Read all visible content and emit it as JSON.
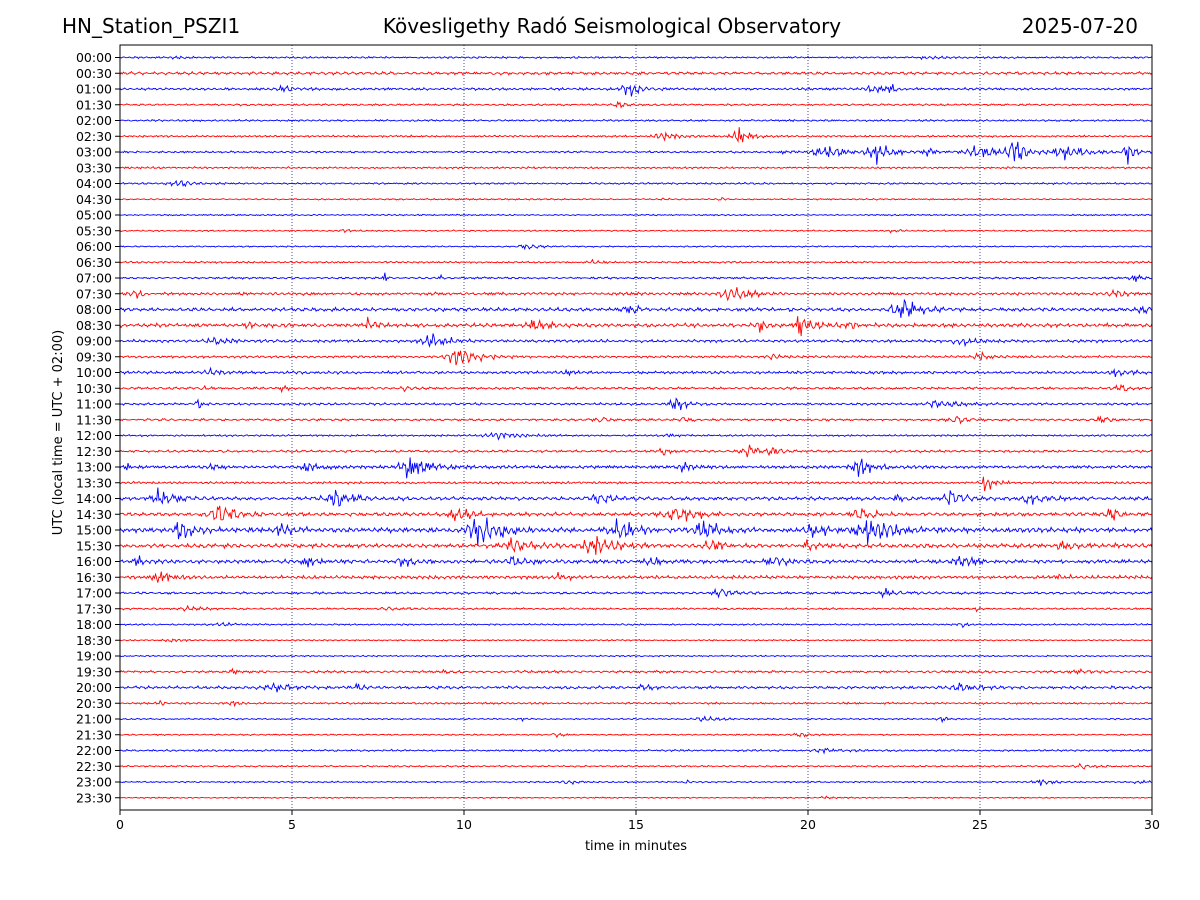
{
  "header": {
    "station": "HN_Station_PSZI1",
    "observatory": "Kövesligethy Radó Seismological Observatory",
    "date": "2025-07-20"
  },
  "colors": {
    "odd_trace": "#0000ff",
    "even_trace": "#ff0000",
    "grid": "#1a1a80",
    "axis": "#000000"
  },
  "chart_data": {
    "type": "line",
    "title": "Kövesligethy Radó Seismological Observatory",
    "xlabel": "time in minutes",
    "ylabel": "UTC (local time = UTC + 02:00)",
    "xlim": [
      0,
      30
    ],
    "x_ticks": [
      "0",
      "5",
      "10",
      "15",
      "20",
      "25",
      "30"
    ],
    "x_tick_values": [
      0,
      5,
      10,
      15,
      20,
      25,
      30
    ],
    "grid": "vertical dotted at each x tick",
    "color_cycle": [
      "blue",
      "red"
    ],
    "rows": [
      {
        "label": "00:00",
        "base": 0.8,
        "events": [
          {
            "t": 1.5,
            "amp": 1.5,
            "width": 0.4
          },
          {
            "t": 23.5,
            "amp": 1.5,
            "width": 0.5
          }
        ]
      },
      {
        "label": "00:30",
        "base": 1.2,
        "events": []
      },
      {
        "label": "01:00",
        "base": 1.0,
        "events": [
          {
            "t": 4.8,
            "amp": 2.5,
            "width": 0.6
          },
          {
            "t": 14.8,
            "amp": 6.5,
            "width": 0.5
          },
          {
            "t": 21.8,
            "amp": 7,
            "width": 0.3
          },
          {
            "t": 22.4,
            "amp": 5,
            "width": 0.2
          }
        ]
      },
      {
        "label": "01:30",
        "base": 0.8,
        "events": [
          {
            "t": 14.5,
            "amp": 2,
            "width": 0.4
          }
        ]
      },
      {
        "label": "02:00",
        "base": 0.8,
        "events": []
      },
      {
        "label": "02:30",
        "base": 0.8,
        "events": [
          {
            "t": 15.8,
            "amp": 4,
            "width": 0.6
          },
          {
            "t": 18.0,
            "amp": 6.5,
            "width": 0.5
          }
        ]
      },
      {
        "label": "03:00",
        "base": 0.8,
        "events": [
          {
            "t": 19.3,
            "amp": 0.8,
            "width": 0.5
          },
          {
            "t": 20.5,
            "amp": 5,
            "width": 1.0
          },
          {
            "t": 22.0,
            "amp": 9,
            "width": 0.6
          },
          {
            "t": 23.5,
            "amp": 4,
            "width": 0.4
          },
          {
            "t": 25.0,
            "amp": 6,
            "width": 0.8
          },
          {
            "t": 26.0,
            "amp": 13,
            "width": 0.5
          },
          {
            "t": 27.5,
            "amp": 6,
            "width": 0.8
          },
          {
            "t": 29.3,
            "amp": 11,
            "width": 0.3
          }
        ]
      },
      {
        "label": "03:30",
        "base": 0.8,
        "events": []
      },
      {
        "label": "04:00",
        "base": 0.8,
        "events": [
          {
            "t": 1.7,
            "amp": 3.5,
            "width": 0.6
          }
        ]
      },
      {
        "label": "04:30",
        "base": 0.6,
        "events": [
          {
            "t": 15.8,
            "amp": 1.5,
            "width": 0.3
          },
          {
            "t": 17.5,
            "amp": 1.5,
            "width": 0.3
          }
        ]
      },
      {
        "label": "05:00",
        "base": 0.6,
        "events": []
      },
      {
        "label": "05:30",
        "base": 0.6,
        "events": [
          {
            "t": 6.5,
            "amp": 1.5,
            "width": 0.3
          },
          {
            "t": 22.5,
            "amp": 1.5,
            "width": 0.3
          }
        ]
      },
      {
        "label": "06:00",
        "base": 0.6,
        "events": [
          {
            "t": 11.8,
            "amp": 2.5,
            "width": 0.5
          }
        ]
      },
      {
        "label": "06:30",
        "base": 0.8,
        "events": [
          {
            "t": 13.8,
            "amp": 1.5,
            "width": 0.4
          }
        ]
      },
      {
        "label": "07:00",
        "base": 0.8,
        "events": [
          {
            "t": 7.7,
            "amp": 6,
            "width": 0.1
          },
          {
            "t": 9.3,
            "amp": 4,
            "width": 0.1
          },
          {
            "t": 29.5,
            "amp": 3,
            "width": 0.4
          }
        ]
      },
      {
        "label": "07:30",
        "base": 1.2,
        "events": [
          {
            "t": 17.7,
            "amp": 9,
            "width": 0.6
          },
          {
            "t": 28.9,
            "amp": 5,
            "width": 0.4
          },
          {
            "t": 0.5,
            "amp": 3,
            "width": 0.4
          }
        ]
      },
      {
        "label": "08:00",
        "base": 1.5,
        "events": [
          {
            "t": 14.8,
            "amp": 3,
            "width": 0.5
          },
          {
            "t": 22.8,
            "amp": 8,
            "width": 0.8
          },
          {
            "t": 29.7,
            "amp": 4,
            "width": 0.3
          }
        ]
      },
      {
        "label": "08:30",
        "base": 1.6,
        "events": [
          {
            "t": 3.7,
            "amp": 3.5,
            "width": 0.3
          },
          {
            "t": 7.2,
            "amp": 5,
            "width": 0.3
          },
          {
            "t": 12.0,
            "amp": 4,
            "width": 0.6
          },
          {
            "t": 18.6,
            "amp": 5,
            "width": 0.3
          },
          {
            "t": 19.8,
            "amp": 8,
            "width": 0.5
          },
          {
            "t": 21.2,
            "amp": 3,
            "width": 0.4
          }
        ]
      },
      {
        "label": "09:00",
        "base": 1.2,
        "events": [
          {
            "t": 2.8,
            "amp": 3,
            "width": 0.6
          },
          {
            "t": 9.1,
            "amp": 5,
            "width": 0.8
          },
          {
            "t": 24.5,
            "amp": 4,
            "width": 0.6
          }
        ]
      },
      {
        "label": "09:30",
        "base": 1.0,
        "events": [
          {
            "t": 9.9,
            "amp": 8,
            "width": 0.8
          },
          {
            "t": 19.0,
            "amp": 2.5,
            "width": 0.4
          },
          {
            "t": 25.0,
            "amp": 3,
            "width": 0.4
          }
        ]
      },
      {
        "label": "10:00",
        "base": 1.2,
        "events": [
          {
            "t": 2.6,
            "amp": 2.5,
            "width": 0.4
          },
          {
            "t": 13.0,
            "amp": 2,
            "width": 0.4
          },
          {
            "t": 29.0,
            "amp": 3,
            "width": 0.6
          }
        ]
      },
      {
        "label": "10:30",
        "base": 1.0,
        "events": [
          {
            "t": 2.5,
            "amp": 1.5,
            "width": 0.3
          },
          {
            "t": 4.7,
            "amp": 2,
            "width": 0.3
          },
          {
            "t": 8.3,
            "amp": 1.8,
            "width": 0.3
          },
          {
            "t": 29.1,
            "amp": 3,
            "width": 0.5
          }
        ]
      },
      {
        "label": "11:00",
        "base": 1.0,
        "events": [
          {
            "t": 2.3,
            "amp": 4,
            "width": 0.2
          },
          {
            "t": 16.2,
            "amp": 5,
            "width": 0.5
          },
          {
            "t": 23.8,
            "amp": 3,
            "width": 0.8
          }
        ]
      },
      {
        "label": "11:30",
        "base": 0.9,
        "events": [
          {
            "t": 14.0,
            "amp": 2,
            "width": 0.5
          },
          {
            "t": 16.4,
            "amp": 2,
            "width": 0.4
          },
          {
            "t": 24.3,
            "amp": 3,
            "width": 0.5
          },
          {
            "t": 28.5,
            "amp": 2,
            "width": 0.6
          }
        ]
      },
      {
        "label": "12:00",
        "base": 0.8,
        "events": [
          {
            "t": 11.0,
            "amp": 3,
            "width": 0.8
          },
          {
            "t": 16.0,
            "amp": 1.5,
            "width": 0.4
          }
        ]
      },
      {
        "label": "12:30",
        "base": 1.0,
        "events": [
          {
            "t": 15.8,
            "amp": 3,
            "width": 0.4
          },
          {
            "t": 18.3,
            "amp": 5,
            "width": 0.5
          },
          {
            "t": 19.0,
            "amp": 5,
            "width": 0.3
          }
        ]
      },
      {
        "label": "13:00",
        "base": 1.2,
        "events": [
          {
            "t": 0.2,
            "amp": 3,
            "width": 0.1
          },
          {
            "t": 2.7,
            "amp": 2,
            "width": 0.3
          },
          {
            "t": 5.5,
            "amp": 4,
            "width": 0.5
          },
          {
            "t": 8.5,
            "amp": 9,
            "width": 0.8
          },
          {
            "t": 16.4,
            "amp": 3,
            "width": 0.5
          },
          {
            "t": 21.5,
            "amp": 7,
            "width": 0.6
          }
        ]
      },
      {
        "label": "13:30",
        "base": 1.0,
        "events": [
          {
            "t": 25.2,
            "amp": 9,
            "width": 0.3
          }
        ]
      },
      {
        "label": "14:00",
        "base": 1.5,
        "events": [
          {
            "t": 1.2,
            "amp": 8,
            "width": 0.6
          },
          {
            "t": 6.3,
            "amp": 8,
            "width": 0.7
          },
          {
            "t": 14.0,
            "amp": 4,
            "width": 0.7
          },
          {
            "t": 22.6,
            "amp": 3,
            "width": 0.3
          },
          {
            "t": 24.2,
            "amp": 7,
            "width": 0.5
          },
          {
            "t": 26.5,
            "amp": 4,
            "width": 0.6
          }
        ]
      },
      {
        "label": "14:30",
        "base": 1.5,
        "events": [
          {
            "t": 2.9,
            "amp": 8,
            "width": 0.7
          },
          {
            "t": 9.8,
            "amp": 7,
            "width": 0.5
          },
          {
            "t": 16.2,
            "amp": 7,
            "width": 0.8
          },
          {
            "t": 21.5,
            "amp": 5,
            "width": 0.6
          },
          {
            "t": 28.8,
            "amp": 6,
            "width": 0.3
          }
        ]
      },
      {
        "label": "15:00",
        "base": 2.0,
        "events": [
          {
            "t": 1.8,
            "amp": 8,
            "width": 0.5
          },
          {
            "t": 4.7,
            "amp": 4,
            "width": 0.5
          },
          {
            "t": 10.5,
            "amp": 13,
            "width": 0.9
          },
          {
            "t": 14.5,
            "amp": 8,
            "width": 0.7
          },
          {
            "t": 17.0,
            "amp": 9,
            "width": 0.6
          },
          {
            "t": 20.2,
            "amp": 5,
            "width": 0.6
          },
          {
            "t": 21.8,
            "amp": 12,
            "width": 0.9
          }
        ]
      },
      {
        "label": "15:30",
        "base": 1.8,
        "events": [
          {
            "t": 11.5,
            "amp": 5,
            "width": 0.8
          },
          {
            "t": 13.8,
            "amp": 9,
            "width": 0.7
          },
          {
            "t": 17.2,
            "amp": 6,
            "width": 0.4
          },
          {
            "t": 20.0,
            "amp": 3,
            "width": 0.3
          },
          {
            "t": 27.5,
            "amp": 3,
            "width": 0.8
          }
        ]
      },
      {
        "label": "16:00",
        "base": 1.6,
        "events": [
          {
            "t": 0.5,
            "amp": 4,
            "width": 0.4
          },
          {
            "t": 5.4,
            "amp": 5,
            "width": 0.4
          },
          {
            "t": 8.2,
            "amp": 4,
            "width": 0.4
          },
          {
            "t": 11.5,
            "amp": 5,
            "width": 0.5
          },
          {
            "t": 15.5,
            "amp": 3,
            "width": 0.5
          },
          {
            "t": 19.0,
            "amp": 4,
            "width": 0.5
          },
          {
            "t": 24.5,
            "amp": 3,
            "width": 0.6
          }
        ]
      },
      {
        "label": "16:30",
        "base": 1.4,
        "events": [
          {
            "t": 1.2,
            "amp": 6,
            "width": 0.5
          },
          {
            "t": 12.8,
            "amp": 4,
            "width": 0.3
          },
          {
            "t": 27.3,
            "amp": 2.5,
            "width": 0.3
          }
        ]
      },
      {
        "label": "17:00",
        "base": 1.0,
        "events": [
          {
            "t": 17.5,
            "amp": 3,
            "width": 0.6
          },
          {
            "t": 22.3,
            "amp": 3,
            "width": 0.6
          }
        ]
      },
      {
        "label": "17:30",
        "base": 0.8,
        "events": [
          {
            "t": 2.0,
            "amp": 2,
            "width": 0.5
          },
          {
            "t": 7.8,
            "amp": 2,
            "width": 0.5
          },
          {
            "t": 24.9,
            "amp": 3,
            "width": 0.1
          }
        ]
      },
      {
        "label": "18:00",
        "base": 0.7,
        "events": [
          {
            "t": 3.0,
            "amp": 1.2,
            "width": 0.6
          },
          {
            "t": 24.5,
            "amp": 2,
            "width": 0.4
          }
        ]
      },
      {
        "label": "18:30",
        "base": 0.6,
        "events": [
          {
            "t": 1.5,
            "amp": 1.2,
            "width": 0.5
          }
        ]
      },
      {
        "label": "19:00",
        "base": 0.6,
        "events": []
      },
      {
        "label": "19:30",
        "base": 1.0,
        "events": [
          {
            "t": 3.3,
            "amp": 2,
            "width": 0.3
          },
          {
            "t": 9.5,
            "amp": 2,
            "width": 0.3
          },
          {
            "t": 27.8,
            "amp": 2,
            "width": 0.4
          }
        ]
      },
      {
        "label": "20:00",
        "base": 1.2,
        "events": [
          {
            "t": 4.5,
            "amp": 2.5,
            "width": 0.8
          },
          {
            "t": 6.9,
            "amp": 3,
            "width": 0.5
          },
          {
            "t": 15.3,
            "amp": 3,
            "width": 0.5
          },
          {
            "t": 24.5,
            "amp": 3,
            "width": 0.8
          }
        ]
      },
      {
        "label": "20:30",
        "base": 0.8,
        "events": [
          {
            "t": 1.2,
            "amp": 2.5,
            "width": 0.3
          },
          {
            "t": 3.3,
            "amp": 1.5,
            "width": 0.3
          }
        ]
      },
      {
        "label": "21:00",
        "base": 0.6,
        "events": [
          {
            "t": 11.6,
            "amp": 2,
            "width": 0.2
          },
          {
            "t": 17.0,
            "amp": 2,
            "width": 0.6
          },
          {
            "t": 23.9,
            "amp": 2,
            "width": 0.3
          }
        ]
      },
      {
        "label": "21:30",
        "base": 0.6,
        "events": [
          {
            "t": 12.7,
            "amp": 1.5,
            "width": 0.3
          },
          {
            "t": 19.8,
            "amp": 2,
            "width": 0.5
          }
        ]
      },
      {
        "label": "22:00",
        "base": 0.8,
        "events": [
          {
            "t": 20.5,
            "amp": 2,
            "width": 0.6
          }
        ]
      },
      {
        "label": "22:30",
        "base": 0.7,
        "events": [
          {
            "t": 28.0,
            "amp": 2,
            "width": 0.6
          }
        ]
      },
      {
        "label": "23:00",
        "base": 0.6,
        "events": [
          {
            "t": 13.0,
            "amp": 2,
            "width": 0.5
          },
          {
            "t": 16.5,
            "amp": 1.5,
            "width": 0.3
          },
          {
            "t": 26.8,
            "amp": 2.5,
            "width": 0.6
          },
          {
            "t": 29.6,
            "amp": 1.5,
            "width": 0.4
          }
        ]
      },
      {
        "label": "23:30",
        "base": 0.5,
        "events": [
          {
            "t": 20.5,
            "amp": 1.5,
            "width": 0.3
          }
        ]
      }
    ]
  }
}
